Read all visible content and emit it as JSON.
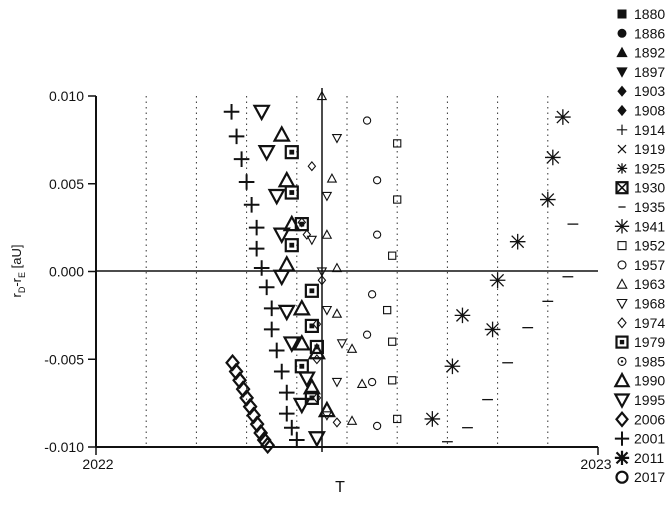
{
  "chart_data": {
    "type": "scatter",
    "title": "",
    "xlabel": "T",
    "ylabel": "r_D - r_E [aU]",
    "ylabel_main": "r",
    "ylabel_sub1": "D",
    "ylabel_mid": "-r",
    "ylabel_sub2": "E",
    "ylabel_unit": " [aU]",
    "xlim": [
      2022,
      2023
    ],
    "ylim": [
      -0.01,
      0.01
    ],
    "x_tick_labels": [
      "2022",
      "2023"
    ],
    "y_ticks": [
      0.01,
      0.005,
      0.0,
      -0.005,
      -0.01
    ],
    "y_tick_labels": [
      "0.010",
      "0.005",
      "0.000",
      "-0.005",
      "-0.010"
    ],
    "grid": "dotted vertical lines",
    "legend_position": "right",
    "series": [
      {
        "name": "1880",
        "marker": "square-filled",
        "points": []
      },
      {
        "name": "1886",
        "marker": "circle-filled",
        "points": []
      },
      {
        "name": "1892",
        "marker": "triangle-up-filled",
        "points": []
      },
      {
        "name": "1897",
        "marker": "triangle-down-filled",
        "points": []
      },
      {
        "name": "1903",
        "marker": "diamond-filled",
        "points": []
      },
      {
        "name": "1908",
        "marker": "diamond-filled-small",
        "points": []
      },
      {
        "name": "1914",
        "marker": "plus-small",
        "points": []
      },
      {
        "name": "1919",
        "marker": "x-small",
        "points": []
      },
      {
        "name": "1925",
        "marker": "asterisk-small",
        "points": []
      },
      {
        "name": "1930",
        "marker": "boxed-x",
        "points": []
      },
      {
        "name": "1935",
        "marker": "dash",
        "points": [
          [
            2022.95,
            0.0027
          ],
          [
            2022.94,
            -0.0003
          ],
          [
            2022.9,
            -0.0017
          ],
          [
            2022.86,
            -0.0032
          ],
          [
            2022.82,
            -0.0052
          ],
          [
            2022.78,
            -0.0073
          ],
          [
            2022.74,
            -0.0089
          ],
          [
            2022.7,
            -0.0097
          ]
        ]
      },
      {
        "name": "1941",
        "marker": "asterisk-boxed",
        "points": [
          [
            2022.93,
            0.0088
          ],
          [
            2022.91,
            0.0065
          ],
          [
            2022.9,
            0.0041
          ],
          [
            2022.84,
            0.0017
          ],
          [
            2022.8,
            -0.0005
          ],
          [
            2022.73,
            -0.0025
          ],
          [
            2022.79,
            -0.0033
          ],
          [
            2022.71,
            -0.0054
          ],
          [
            2022.67,
            -0.0084
          ]
        ]
      },
      {
        "name": "1952",
        "marker": "square-open-small",
        "points": [
          [
            2022.6,
            0.0073
          ],
          [
            2022.6,
            0.0041
          ],
          [
            2022.59,
            0.0009
          ],
          [
            2022.58,
            -0.0022
          ],
          [
            2022.59,
            -0.004
          ],
          [
            2022.59,
            -0.0062
          ],
          [
            2022.6,
            -0.0084
          ]
        ]
      },
      {
        "name": "1957",
        "marker": "circle-open-small",
        "points": [
          [
            2022.54,
            0.0086
          ],
          [
            2022.56,
            0.0052
          ],
          [
            2022.56,
            0.0021
          ],
          [
            2022.55,
            -0.0013
          ],
          [
            2022.54,
            -0.0036
          ],
          [
            2022.55,
            -0.0063
          ],
          [
            2022.56,
            -0.0088
          ]
        ]
      },
      {
        "name": "1963",
        "marker": "triangle-up-open-small",
        "points": [
          [
            2022.45,
            0.01
          ],
          [
            2022.47,
            0.0053
          ],
          [
            2022.46,
            0.0021
          ],
          [
            2022.48,
            0.0002
          ],
          [
            2022.48,
            -0.0024
          ],
          [
            2022.51,
            -0.0044
          ],
          [
            2022.53,
            -0.0064
          ],
          [
            2022.51,
            -0.0085
          ]
        ]
      },
      {
        "name": "1968",
        "marker": "triangle-down-open-small",
        "points": [
          [
            2022.48,
            0.0076
          ],
          [
            2022.46,
            0.0043
          ],
          [
            2022.43,
            0.0018
          ],
          [
            2022.45,
            0.0
          ],
          [
            2022.46,
            -0.0022
          ],
          [
            2022.49,
            -0.0041
          ],
          [
            2022.48,
            -0.0063
          ],
          [
            2022.46,
            -0.0082
          ]
        ]
      },
      {
        "name": "1974",
        "marker": "diamond-open-small",
        "points": [
          [
            2022.43,
            0.006
          ],
          [
            2022.41,
            0.0028
          ],
          [
            2022.42,
            0.0021
          ],
          [
            2022.45,
            -0.0005
          ],
          [
            2022.44,
            -0.003
          ],
          [
            2022.44,
            -0.005
          ],
          [
            2022.44,
            -0.0072
          ],
          [
            2022.48,
            -0.0086
          ]
        ]
      },
      {
        "name": "1979",
        "marker": "boxed-square",
        "points": [
          [
            2022.39,
            0.0068
          ],
          [
            2022.39,
            0.0045
          ],
          [
            2022.41,
            0.0027
          ],
          [
            2022.39,
            0.0015
          ],
          [
            2022.43,
            -0.0011
          ],
          [
            2022.43,
            -0.0031
          ],
          [
            2022.44,
            -0.0043
          ],
          [
            2022.41,
            -0.0054
          ],
          [
            2022.43,
            -0.0072
          ]
        ]
      },
      {
        "name": "1985",
        "marker": "circle-dot",
        "points": []
      },
      {
        "name": "1990",
        "marker": "triangle-up-bold",
        "points": [
          [
            2022.37,
            0.0078
          ],
          [
            2022.38,
            0.0052
          ],
          [
            2022.39,
            0.0027
          ],
          [
            2022.38,
            0.0004
          ],
          [
            2022.41,
            -0.0021
          ],
          [
            2022.41,
            -0.0041
          ],
          [
            2022.44,
            -0.0046
          ],
          [
            2022.43,
            -0.0066
          ],
          [
            2022.46,
            -0.0079
          ]
        ]
      },
      {
        "name": "1995",
        "marker": "triangle-down-bold",
        "points": [
          [
            2022.33,
            0.0091
          ],
          [
            2022.34,
            0.0068
          ],
          [
            2022.36,
            0.0043
          ],
          [
            2022.37,
            0.0021
          ],
          [
            2022.37,
            -0.0003
          ],
          [
            2022.38,
            -0.0023
          ],
          [
            2022.39,
            -0.0041
          ],
          [
            2022.42,
            -0.0061
          ],
          [
            2022.41,
            -0.0076
          ],
          [
            2022.44,
            -0.0095
          ]
        ]
      },
      {
        "name": "2006",
        "marker": "diamond-bold",
        "points": [
          [
            2022.272,
            -0.0052
          ],
          [
            2022.279,
            -0.0057
          ],
          [
            2022.286,
            -0.0062
          ],
          [
            2022.293,
            -0.0067
          ],
          [
            2022.3,
            -0.0072
          ],
          [
            2022.307,
            -0.0077
          ],
          [
            2022.314,
            -0.0082
          ],
          [
            2022.321,
            -0.0087
          ],
          [
            2022.328,
            -0.0092
          ],
          [
            2022.335,
            -0.0096
          ],
          [
            2022.342,
            -0.0099
          ]
        ]
      },
      {
        "name": "2001",
        "marker": "plus-bold",
        "points": [
          [
            2022.27,
            0.0091
          ],
          [
            2022.28,
            0.0077
          ],
          [
            2022.29,
            0.0064
          ],
          [
            2022.3,
            0.0051
          ],
          [
            2022.31,
            0.0038
          ],
          [
            2022.32,
            0.0025
          ],
          [
            2022.32,
            0.0013
          ],
          [
            2022.33,
            0.0002
          ],
          [
            2022.34,
            -0.0009
          ],
          [
            2022.35,
            -0.0021
          ],
          [
            2022.35,
            -0.0033
          ],
          [
            2022.36,
            -0.0045
          ],
          [
            2022.37,
            -0.0057
          ],
          [
            2022.38,
            -0.0069
          ],
          [
            2022.38,
            -0.0081
          ],
          [
            2022.39,
            -0.0089
          ],
          [
            2022.4,
            -0.0096
          ]
        ]
      },
      {
        "name": "2011",
        "marker": "asterisk-bold",
        "points": []
      },
      {
        "name": "2017",
        "marker": "circle-open-bold",
        "points": []
      }
    ]
  }
}
